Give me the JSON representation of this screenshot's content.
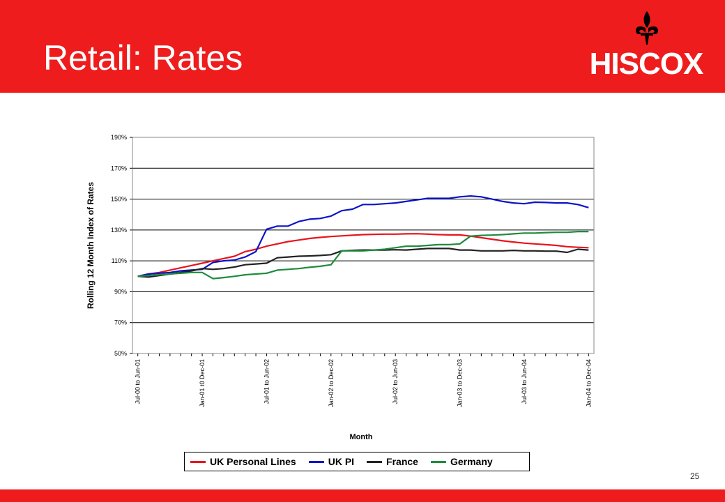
{
  "header": {
    "title": "Retail: Rates",
    "brand": "HISCOX",
    "bar_color": "#ee1c1c"
  },
  "page_number": "25",
  "chart_data": {
    "type": "line",
    "title": "",
    "xlabel": "Month",
    "ylabel": "Rolling 12 Month Index of Rates",
    "ylim": [
      50,
      190
    ],
    "yticks": [
      "50%",
      "70%",
      "90%",
      "110%",
      "130%",
      "150%",
      "170%",
      "190%"
    ],
    "ytick_values": [
      50,
      70,
      90,
      110,
      130,
      150,
      170,
      190
    ],
    "grid": true,
    "legend_position": "bottom",
    "x_tick_labels": [
      "Jul-00 to Jun-01",
      "Jan-01 t0 Dec-01",
      "Jul-01 to Jun-02",
      "Jan-02 to Dec-02",
      "Jul-02 to Jun-03",
      "Jan-03 to Dec-03",
      "Jul-03 to Jun-04",
      "Jan-04 to Dec-04"
    ],
    "x_tick_positions": [
      0,
      6,
      12,
      18,
      24,
      30,
      36,
      42
    ],
    "x_count": 43,
    "series": [
      {
        "name": "UK Personal Lines",
        "color": "#e8141c",
        "values": [
          100,
          101.5,
          102.5,
          104,
          105.5,
          107,
          108.5,
          110,
          111.5,
          113,
          116,
          117.5,
          119.5,
          121,
          122.5,
          123.5,
          124.5,
          125.2,
          125.8,
          126.2,
          126.6,
          127,
          127.2,
          127.3,
          127.3,
          127.5,
          127.6,
          127.3,
          127,
          126.8,
          126.8,
          126,
          125,
          124,
          123,
          122.2,
          121.5,
          121,
          120.5,
          120,
          119.2,
          118.8,
          118.5
        ]
      },
      {
        "name": "UK PI",
        "color": "#0a14c8",
        "values": [
          100,
          101.5,
          102,
          102.5,
          103.5,
          104,
          104.5,
          109,
          110,
          110.5,
          112.5,
          116,
          130.5,
          132.5,
          132.5,
          135.5,
          137,
          137.5,
          139,
          142.5,
          143.5,
          146.5,
          146.5,
          147,
          147.5,
          148.5,
          149.5,
          150.5,
          150.5,
          150.5,
          151.5,
          152,
          151.5,
          150,
          148.5,
          147.5,
          147,
          148,
          147.8,
          147.5,
          147.5,
          146.5,
          144.5
        ]
      },
      {
        "name": "France",
        "color": "#222222",
        "values": [
          100,
          99.5,
          100.5,
          101.5,
          102.5,
          103.5,
          105,
          104.5,
          105,
          106,
          107.5,
          108,
          108.5,
          112,
          112.5,
          113,
          113.2,
          113.5,
          114,
          116.5,
          116.8,
          117,
          117,
          117,
          117.2,
          117,
          117.5,
          118,
          118,
          118,
          117,
          117,
          116.5,
          116.5,
          116.5,
          116.8,
          116.5,
          116.5,
          116.3,
          116.3,
          115.5,
          117.5,
          117
        ]
      },
      {
        "name": "Germany",
        "color": "#1e8c3c",
        "values": [
          100,
          100.5,
          101,
          101.5,
          102,
          102.5,
          102.5,
          98.5,
          99.2,
          100,
          101,
          101.5,
          102,
          104,
          104.5,
          105,
          105.8,
          106.5,
          107.5,
          116.5,
          116.5,
          116.5,
          117,
          117.5,
          118.5,
          119.5,
          119.5,
          120,
          120.5,
          120.5,
          121,
          126,
          126.5,
          126.7,
          127,
          127.5,
          128,
          128,
          128.3,
          128.5,
          128.5,
          129,
          129
        ]
      }
    ]
  }
}
